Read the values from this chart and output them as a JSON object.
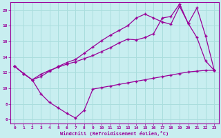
{
  "background_color": "#c8eef0",
  "grid_color": "#aadddd",
  "line_color": "#990099",
  "xlabel": "Windchill (Refroidissement éolien,°C)",
  "xlim": [
    -0.5,
    23.5
  ],
  "ylim": [
    5.5,
    21.0
  ],
  "xticks": [
    0,
    1,
    2,
    3,
    4,
    5,
    6,
    7,
    8,
    9,
    10,
    11,
    12,
    13,
    14,
    15,
    16,
    17,
    18,
    19,
    20,
    21,
    22,
    23
  ],
  "yticks": [
    6,
    8,
    10,
    12,
    14,
    16,
    18,
    20
  ],
  "line1_x": [
    0,
    1,
    2,
    3,
    4,
    5,
    6,
    7,
    8,
    9,
    10,
    11,
    12,
    13,
    14,
    15,
    16,
    17,
    18,
    19,
    20,
    21,
    22,
    23
  ],
  "line1_y": [
    12.8,
    11.9,
    11.1,
    9.3,
    8.2,
    7.5,
    6.8,
    6.2,
    7.2,
    9.9,
    10.1,
    10.3,
    10.5,
    10.7,
    10.9,
    11.1,
    11.3,
    11.5,
    11.7,
    11.9,
    12.1,
    12.2,
    12.3,
    12.3
  ],
  "line2_x": [
    0,
    1,
    2,
    3,
    4,
    5,
    6,
    7,
    8,
    9,
    10,
    11,
    12,
    13,
    14,
    15,
    16,
    17,
    18,
    19,
    20,
    21,
    22,
    23
  ],
  "line2_y": [
    12.8,
    11.9,
    11.1,
    11.5,
    12.2,
    12.8,
    13.3,
    13.7,
    14.5,
    15.3,
    16.1,
    16.8,
    17.4,
    18.0,
    19.0,
    19.5,
    19.0,
    18.5,
    18.2,
    20.5,
    18.3,
    16.5,
    13.5,
    12.3
  ],
  "line3_x": [
    0,
    1,
    2,
    3,
    4,
    5,
    6,
    7,
    8,
    9,
    10,
    11,
    12,
    13,
    14,
    15,
    16,
    17,
    18,
    19,
    20,
    21,
    22,
    23
  ],
  "line3_y": [
    12.8,
    11.9,
    11.1,
    11.8,
    12.3,
    12.7,
    13.1,
    13.4,
    13.8,
    14.2,
    14.7,
    15.2,
    15.8,
    16.3,
    16.2,
    16.5,
    17.0,
    19.0,
    19.2,
    20.8,
    18.3,
    20.3,
    16.7,
    12.3
  ]
}
